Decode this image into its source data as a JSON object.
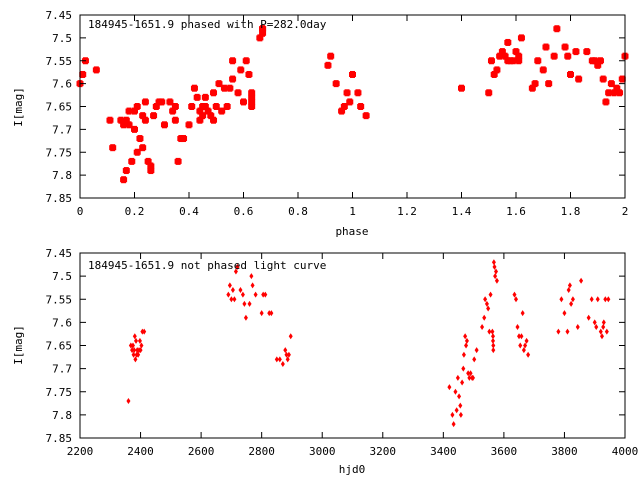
{
  "chart_data": [
    {
      "type": "scatter",
      "title": "184945-1651.9 phased with P=282.0day",
      "xlabel": "phase",
      "ylabel": "I[mag]",
      "xlim": [
        0,
        2
      ],
      "ylim": [
        7.85,
        7.45
      ],
      "y_inverted": true,
      "grid": false,
      "x_ticks": [
        "0",
        "0.2",
        "0.4",
        "0.6",
        "0.8",
        "1",
        "1.2",
        "1.4",
        "1.6",
        "1.8",
        "2"
      ],
      "y_ticks": [
        "7.45",
        "7.5",
        "7.55",
        "7.6",
        "7.65",
        "7.7",
        "7.75",
        "7.8",
        "7.85"
      ],
      "marker_color": "#ff0000",
      "series": [
        {
          "points": [
            [
              0.0,
              7.6
            ],
            [
              0.01,
              7.58
            ],
            [
              0.02,
              7.55
            ],
            [
              0.06,
              7.57
            ],
            [
              0.11,
              7.68
            ],
            [
              0.12,
              7.74
            ],
            [
              0.15,
              7.68
            ],
            [
              0.16,
              7.69
            ],
            [
              0.16,
              7.81
            ],
            [
              0.17,
              7.79
            ],
            [
              0.17,
              7.68
            ],
            [
              0.18,
              7.69
            ],
            [
              0.18,
              7.66
            ],
            [
              0.19,
              7.77
            ],
            [
              0.2,
              7.7
            ],
            [
              0.2,
              7.66
            ],
            [
              0.21,
              7.65
            ],
            [
              0.21,
              7.75
            ],
            [
              0.22,
              7.72
            ],
            [
              0.23,
              7.74
            ],
            [
              0.23,
              7.67
            ],
            [
              0.24,
              7.68
            ],
            [
              0.24,
              7.64
            ],
            [
              0.25,
              7.77
            ],
            [
              0.26,
              7.79
            ],
            [
              0.26,
              7.78
            ],
            [
              0.27,
              7.67
            ],
            [
              0.28,
              7.65
            ],
            [
              0.29,
              7.64
            ],
            [
              0.3,
              7.64
            ],
            [
              0.31,
              7.69
            ],
            [
              0.33,
              7.64
            ],
            [
              0.34,
              7.66
            ],
            [
              0.35,
              7.68
            ],
            [
              0.35,
              7.65
            ],
            [
              0.36,
              7.77
            ],
            [
              0.37,
              7.72
            ],
            [
              0.38,
              7.72
            ],
            [
              0.4,
              7.69
            ],
            [
              0.41,
              7.65
            ],
            [
              0.42,
              7.61
            ],
            [
              0.43,
              7.63
            ],
            [
              0.44,
              7.68
            ],
            [
              0.44,
              7.66
            ],
            [
              0.45,
              7.67
            ],
            [
              0.45,
              7.65
            ],
            [
              0.46,
              7.65
            ],
            [
              0.46,
              7.63
            ],
            [
              0.47,
              7.66
            ],
            [
              0.48,
              7.67
            ],
            [
              0.49,
              7.62
            ],
            [
              0.49,
              7.68
            ],
            [
              0.5,
              7.65
            ],
            [
              0.51,
              7.6
            ],
            [
              0.52,
              7.66
            ],
            [
              0.53,
              7.61
            ],
            [
              0.54,
              7.65
            ],
            [
              0.55,
              7.61
            ],
            [
              0.56,
              7.59
            ],
            [
              0.56,
              7.55
            ],
            [
              0.58,
              7.62
            ],
            [
              0.59,
              7.57
            ],
            [
              0.6,
              7.64
            ],
            [
              0.61,
              7.55
            ],
            [
              0.62,
              7.58
            ],
            [
              0.63,
              7.62
            ],
            [
              0.63,
              7.63
            ],
            [
              0.63,
              7.64
            ],
            [
              0.63,
              7.65
            ],
            [
              0.66,
              7.5
            ],
            [
              0.67,
              7.49
            ],
            [
              0.67,
              7.48
            ],
            [
              0.67,
              7.48
            ],
            [
              0.91,
              7.56
            ],
            [
              0.92,
              7.54
            ],
            [
              0.94,
              7.6
            ],
            [
              0.96,
              7.66
            ],
            [
              0.97,
              7.65
            ],
            [
              0.98,
              7.62
            ],
            [
              0.99,
              7.64
            ],
            [
              1.0,
              7.58
            ],
            [
              1.02,
              7.62
            ],
            [
              1.03,
              7.65
            ],
            [
              1.05,
              7.67
            ],
            [
              1.4,
              7.61
            ],
            [
              1.5,
              7.62
            ],
            [
              1.51,
              7.55
            ],
            [
              1.52,
              7.58
            ],
            [
              1.53,
              7.57
            ],
            [
              1.54,
              7.54
            ],
            [
              1.55,
              7.53
            ],
            [
              1.56,
              7.54
            ],
            [
              1.57,
              7.51
            ],
            [
              1.57,
              7.55
            ],
            [
              1.58,
              7.55
            ],
            [
              1.59,
              7.55
            ],
            [
              1.6,
              7.53
            ],
            [
              1.61,
              7.55
            ],
            [
              1.61,
              7.54
            ],
            [
              1.62,
              7.5
            ],
            [
              1.66,
              7.61
            ],
            [
              1.67,
              7.6
            ],
            [
              1.68,
              7.55
            ],
            [
              1.7,
              7.57
            ],
            [
              1.71,
              7.52
            ],
            [
              1.72,
              7.6
            ],
            [
              1.74,
              7.54
            ],
            [
              1.75,
              7.48
            ],
            [
              1.78,
              7.52
            ],
            [
              1.79,
              7.54
            ],
            [
              1.8,
              7.58
            ],
            [
              1.82,
              7.53
            ],
            [
              1.83,
              7.59
            ],
            [
              1.86,
              7.53
            ],
            [
              1.88,
              7.55
            ],
            [
              1.89,
              7.55
            ],
            [
              1.9,
              7.56
            ],
            [
              1.91,
              7.55
            ],
            [
              1.92,
              7.59
            ],
            [
              1.93,
              7.64
            ],
            [
              1.94,
              7.62
            ],
            [
              1.95,
              7.6
            ],
            [
              1.96,
              7.62
            ],
            [
              1.97,
              7.61
            ],
            [
              1.98,
              7.62
            ],
            [
              1.99,
              7.59
            ],
            [
              2.0,
              7.54
            ]
          ]
        }
      ]
    },
    {
      "type": "scatter",
      "title": "184945-1651.9 not phased light curve",
      "xlabel": "hjd0",
      "ylabel": "I[mag]",
      "xlim": [
        2200,
        4000
      ],
      "ylim": [
        7.85,
        7.45
      ],
      "y_inverted": true,
      "grid": false,
      "x_ticks": [
        "2200",
        "2400",
        "2600",
        "2800",
        "3000",
        "3200",
        "3400",
        "3600",
        "3800",
        "4000"
      ],
      "y_ticks": [
        "7.45",
        "7.5",
        "7.55",
        "7.6",
        "7.65",
        "7.7",
        "7.75",
        "7.8",
        "7.85"
      ],
      "marker_color": "#ff0000",
      "series": [
        {
          "points": [
            [
              2360,
              7.77
            ],
            [
              2368,
              7.65
            ],
            [
              2372,
              7.66
            ],
            [
              2375,
              7.65
            ],
            [
              2377,
              7.67
            ],
            [
              2379,
              7.66
            ],
            [
              2381,
              7.63
            ],
            [
              2383,
              7.68
            ],
            [
              2385,
              7.64
            ],
            [
              2387,
              7.67
            ],
            [
              2389,
              7.66
            ],
            [
              2392,
              7.67
            ],
            [
              2395,
              7.66
            ],
            [
              2398,
              7.64
            ],
            [
              2400,
              7.66
            ],
            [
              2403,
              7.65
            ],
            [
              2406,
              7.62
            ],
            [
              2412,
              7.62
            ],
            [
              2690,
              7.54
            ],
            [
              2695,
              7.52
            ],
            [
              2700,
              7.55
            ],
            [
              2705,
              7.53
            ],
            [
              2710,
              7.55
            ],
            [
              2715,
              7.49
            ],
            [
              2720,
              7.48
            ],
            [
              2730,
              7.53
            ],
            [
              2738,
              7.54
            ],
            [
              2743,
              7.56
            ],
            [
              2748,
              7.59
            ],
            [
              2760,
              7.56
            ],
            [
              2766,
              7.5
            ],
            [
              2770,
              7.52
            ],
            [
              2780,
              7.54
            ],
            [
              2800,
              7.58
            ],
            [
              2805,
              7.54
            ],
            [
              2812,
              7.54
            ],
            [
              2825,
              7.58
            ],
            [
              2832,
              7.58
            ],
            [
              2850,
              7.68
            ],
            [
              2860,
              7.68
            ],
            [
              2870,
              7.69
            ],
            [
              2878,
              7.66
            ],
            [
              2882,
              7.67
            ],
            [
              2886,
              7.68
            ],
            [
              2890,
              7.67
            ],
            [
              2896,
              7.63
            ],
            [
              3420,
              7.74
            ],
            [
              3430,
              7.8
            ],
            [
              3434,
              7.82
            ],
            [
              3440,
              7.75
            ],
            [
              3444,
              7.79
            ],
            [
              3448,
              7.72
            ],
            [
              3452,
              7.76
            ],
            [
              3456,
              7.78
            ],
            [
              3458,
              7.8
            ],
            [
              3462,
              7.73
            ],
            [
              3466,
              7.7
            ],
            [
              3468,
              7.67
            ],
            [
              3472,
              7.63
            ],
            [
              3475,
              7.65
            ],
            [
              3478,
              7.64
            ],
            [
              3482,
              7.71
            ],
            [
              3486,
              7.72
            ],
            [
              3490,
              7.71
            ],
            [
              3495,
              7.72
            ],
            [
              3498,
              7.72
            ],
            [
              3502,
              7.68
            ],
            [
              3510,
              7.66
            ],
            [
              3528,
              7.61
            ],
            [
              3535,
              7.59
            ],
            [
              3538,
              7.55
            ],
            [
              3544,
              7.56
            ],
            [
              3548,
              7.57
            ],
            [
              3552,
              7.62
            ],
            [
              3556,
              7.54
            ],
            [
              3562,
              7.62
            ],
            [
              3564,
              7.63
            ],
            [
              3564,
              7.64
            ],
            [
              3565,
              7.65
            ],
            [
              3565,
              7.66
            ],
            [
              3567,
              7.47
            ],
            [
              3569,
              7.48
            ],
            [
              3571,
              7.5
            ],
            [
              3574,
              7.49
            ],
            [
              3577,
              7.51
            ],
            [
              3635,
              7.54
            ],
            [
              3640,
              7.55
            ],
            [
              3645,
              7.61
            ],
            [
              3650,
              7.63
            ],
            [
              3654,
              7.65
            ],
            [
              3658,
              7.63
            ],
            [
              3662,
              7.58
            ],
            [
              3666,
              7.66
            ],
            [
              3670,
              7.65
            ],
            [
              3675,
              7.64
            ],
            [
              3680,
              7.67
            ],
            [
              3780,
              7.62
            ],
            [
              3790,
              7.55
            ],
            [
              3800,
              7.58
            ],
            [
              3810,
              7.62
            ],
            [
              3814,
              7.53
            ],
            [
              3818,
              7.52
            ],
            [
              3822,
              7.56
            ],
            [
              3828,
              7.55
            ],
            [
              3844,
              7.61
            ],
            [
              3855,
              7.51
            ],
            [
              3880,
              7.59
            ],
            [
              3890,
              7.55
            ],
            [
              3900,
              7.6
            ],
            [
              3905,
              7.61
            ],
            [
              3910,
              7.55
            ],
            [
              3920,
              7.62
            ],
            [
              3924,
              7.63
            ],
            [
              3928,
              7.61
            ],
            [
              3930,
              7.6
            ],
            [
              3935,
              7.55
            ],
            [
              3940,
              7.62
            ],
            [
              3945,
              7.55
            ]
          ]
        }
      ]
    }
  ]
}
